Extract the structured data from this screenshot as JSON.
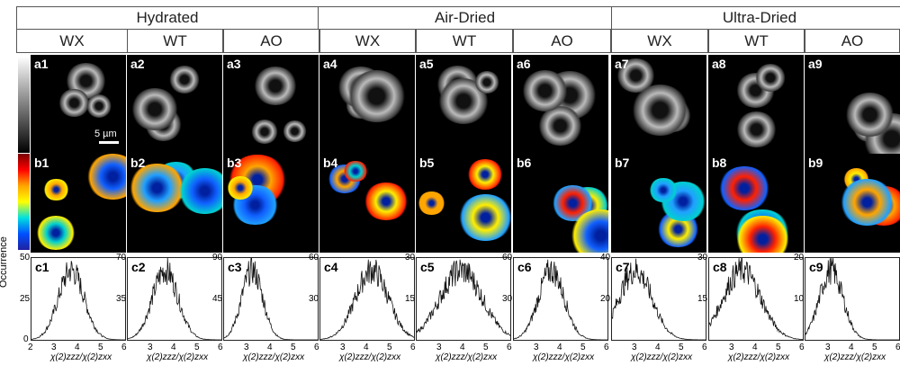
{
  "groups": [
    "Hydrated",
    "Air-Dried",
    "Ultra-Dried"
  ],
  "columns": [
    "WX",
    "WT",
    "AO",
    "WX",
    "WT",
    "AO",
    "WX",
    "WT",
    "AO"
  ],
  "row_a_labels": [
    "a1",
    "a2",
    "a3",
    "a4",
    "a5",
    "a6",
    "a7",
    "a8",
    "a9"
  ],
  "row_b_labels": [
    "b1",
    "b2",
    "b3",
    "b4",
    "b5",
    "b6",
    "b7",
    "b8",
    "b9"
  ],
  "row_c_labels": [
    "c1",
    "c2",
    "c3",
    "c4",
    "c5",
    "c6",
    "c7",
    "c8",
    "c9"
  ],
  "scale_bar": "5 µm",
  "y_axis_label": "Occurrence",
  "x_axis_label": "χ(2)zzz/χ(2)zxx",
  "c1_yticks": [
    "50",
    "25",
    "0"
  ],
  "y_max_labels": [
    "50",
    "70",
    "90",
    "60",
    "30",
    "60",
    "40",
    "30",
    "20"
  ],
  "y_mid_labels": [
    "25",
    "35",
    "45",
    "30",
    "15",
    "30",
    "20",
    "15",
    "10"
  ],
  "x_ticks": [
    "2",
    "3",
    "4",
    "5",
    "6"
  ],
  "chart_data": {
    "type": "histogram",
    "x_range": [
      2,
      6
    ],
    "ylabel": "Occurrence",
    "xlabel": "χ(2)zzz/χ(2)zxx",
    "panels": [
      {
        "name": "c1",
        "ymax": 50,
        "peak": 3.7,
        "spread": 0.55
      },
      {
        "name": "c2",
        "ymax": 70,
        "peak": 3.6,
        "spread": 0.55
      },
      {
        "name": "c3",
        "ymax": 90,
        "peak": 3.2,
        "spread": 0.45
      },
      {
        "name": "c4",
        "ymax": 60,
        "peak": 4.2,
        "spread": 0.7
      },
      {
        "name": "c5",
        "ymax": 30,
        "peak": 3.9,
        "spread": 0.9
      },
      {
        "name": "c6",
        "ymax": 60,
        "peak": 3.6,
        "spread": 0.55
      },
      {
        "name": "c7",
        "ymax": 40,
        "peak": 3.0,
        "spread": 0.7
      },
      {
        "name": "c8",
        "ymax": 30,
        "peak": 3.4,
        "spread": 0.8
      },
      {
        "name": "c9",
        "ymax": 20,
        "peak": 3.1,
        "spread": 0.5
      }
    ]
  }
}
